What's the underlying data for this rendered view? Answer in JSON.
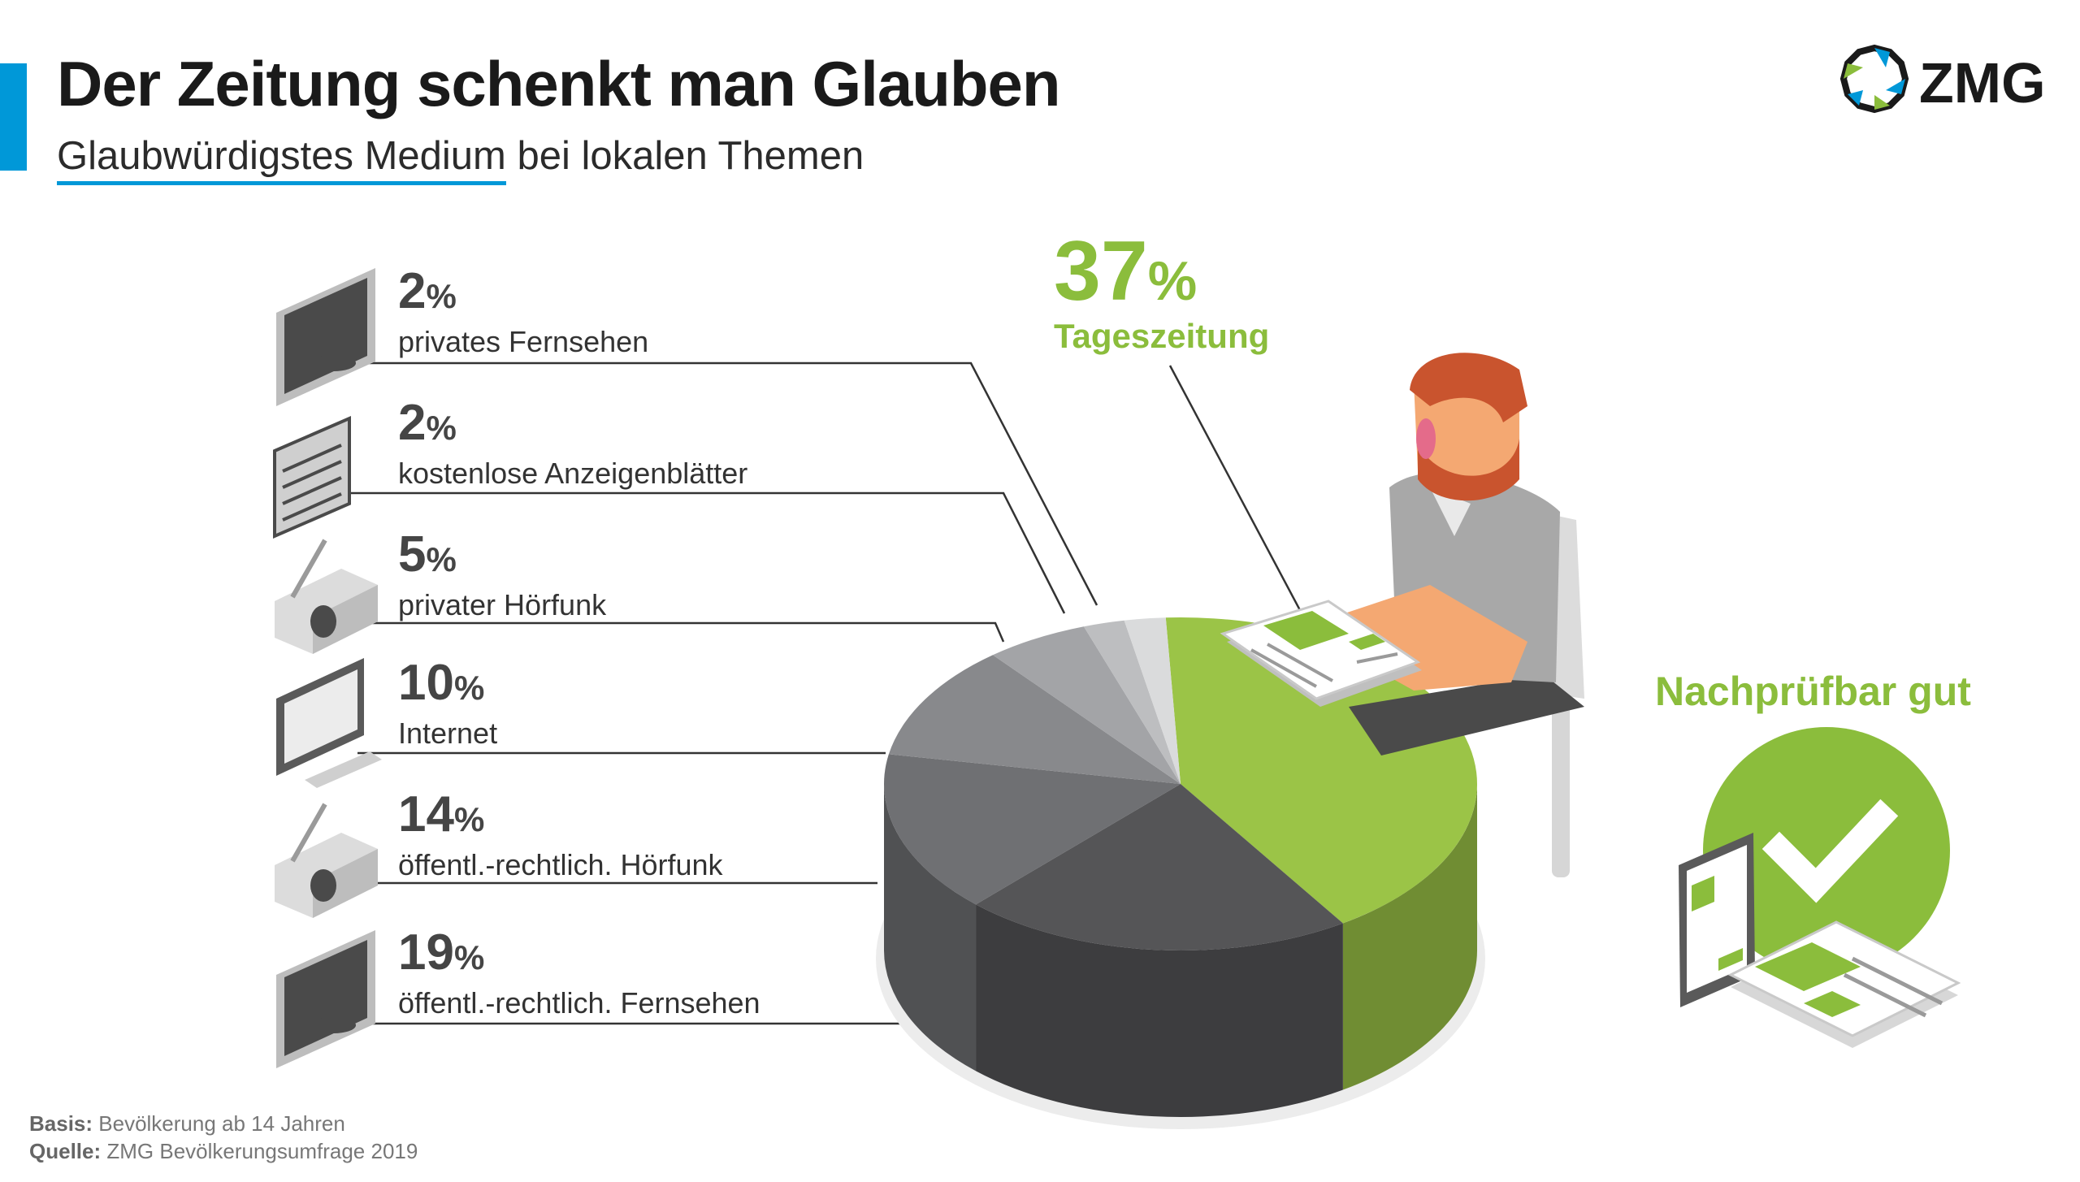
{
  "header": {
    "title": "Der Zeitung schenkt man Glauben",
    "subtitle_highlight": "Glaubwürdigstes Medium",
    "subtitle_rest": " bei lokalen Themen"
  },
  "logo": {
    "text": "ZMG",
    "colors": [
      "#0098d8",
      "#1a1a1a",
      "#8bbd3c"
    ]
  },
  "chart_data": {
    "type": "pie",
    "title": "Der Zeitung schenkt man Glauben",
    "subtitle": "Glaubwürdigstes Medium bei lokalen Themen",
    "unit": "%",
    "slices": [
      {
        "label": "Tageszeitung",
        "value": 37,
        "color": "#9bc447"
      },
      {
        "label": "öffentl.-rechtlich. Fernsehen",
        "value": 19,
        "color": "#555557"
      },
      {
        "label": "öffentl.-rechtlich. Hörfunk",
        "value": 14,
        "color": "#6f7073"
      },
      {
        "label": "Internet",
        "value": 10,
        "color": "#88898c"
      },
      {
        "label": "privater Hörfunk",
        "value": 5,
        "color": "#a3a4a7"
      },
      {
        "label": "kostenlose Anzeigenblätter",
        "value": 2,
        "color": "#bdbec0"
      },
      {
        "label": "privates Fernsehen",
        "value": 2,
        "color": "#dadbdc"
      }
    ]
  },
  "labels": [
    {
      "pct": "2",
      "suffix": "%",
      "label": "privates Fernsehen",
      "icon": "tv-icon"
    },
    {
      "pct": "2",
      "suffix": "%",
      "label": "kostenlose Anzeigenblätter",
      "icon": "newspaper-icon"
    },
    {
      "pct": "5",
      "suffix": "%",
      "label": "privater Hörfunk",
      "icon": "radio-icon"
    },
    {
      "pct": "10",
      "suffix": "%",
      "label": "Internet",
      "icon": "computer-icon"
    },
    {
      "pct": "14",
      "suffix": "%",
      "label": "öffentl.-rechtlich. Hörfunk",
      "icon": "radio-icon"
    },
    {
      "pct": "19",
      "suffix": "%",
      "label": "öffentl.-rechtlich. Fernsehen",
      "icon": "tv-icon"
    }
  ],
  "highlight": {
    "pct": "37",
    "suffix": "%",
    "label": "Tageszeitung",
    "color": "#8bbd3c"
  },
  "badge": {
    "text": "Nachprüfbar gut",
    "icon": "checkmark-icon",
    "color": "#8bbd3c"
  },
  "footer": {
    "basis_label": "Basis:",
    "basis_text": " Bevölkerung ab 14 Jahren",
    "source_label": "Quelle:",
    "source_text": " ZMG Bevölkerungsumfrage 2019"
  }
}
